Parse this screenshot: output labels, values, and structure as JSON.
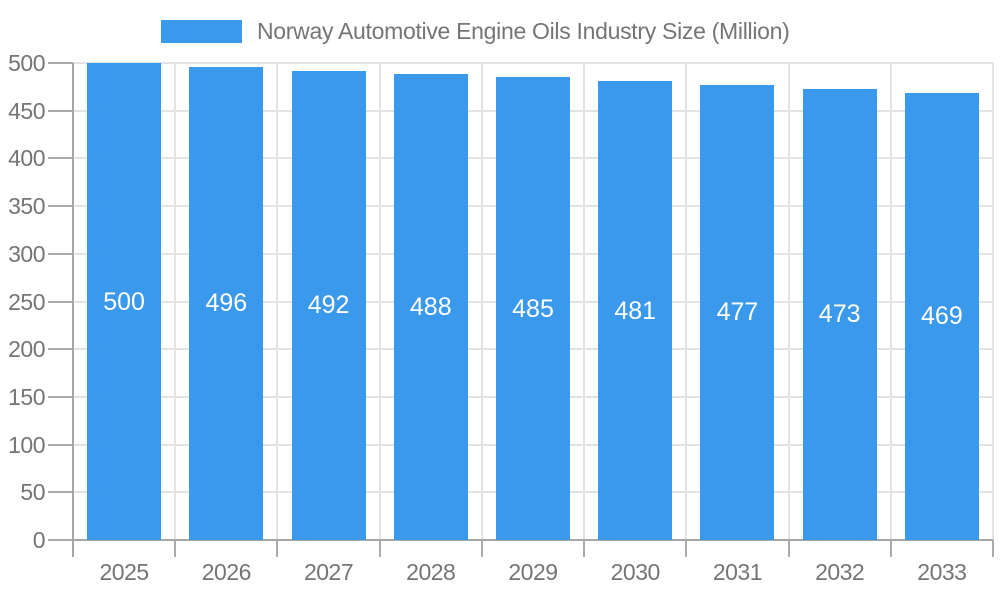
{
  "chart_data": {
    "type": "bar",
    "title": "Norway Automotive Engine Oils Industry Size (Million)",
    "categories": [
      "2025",
      "2026",
      "2027",
      "2028",
      "2029",
      "2030",
      "2031",
      "2032",
      "2033"
    ],
    "values": [
      500,
      496,
      492,
      488,
      485,
      481,
      477,
      473,
      469
    ],
    "xlabel": "",
    "ylabel": "",
    "ylim": [
      0,
      500
    ],
    "ytick_step": 50,
    "yticks": [
      0,
      50,
      100,
      150,
      200,
      250,
      300,
      350,
      400,
      450,
      500
    ],
    "grid": true,
    "legend_position": "top-center",
    "value_label_position": "inside-center"
  },
  "colors": {
    "bar": "#3B99EC",
    "axis": "#A6A6A6",
    "tick": "#ABABAB",
    "grid": "#E3E3E3",
    "text": "#757575",
    "value_label": "#FFFFFF",
    "background": "#FFFFFF"
  }
}
